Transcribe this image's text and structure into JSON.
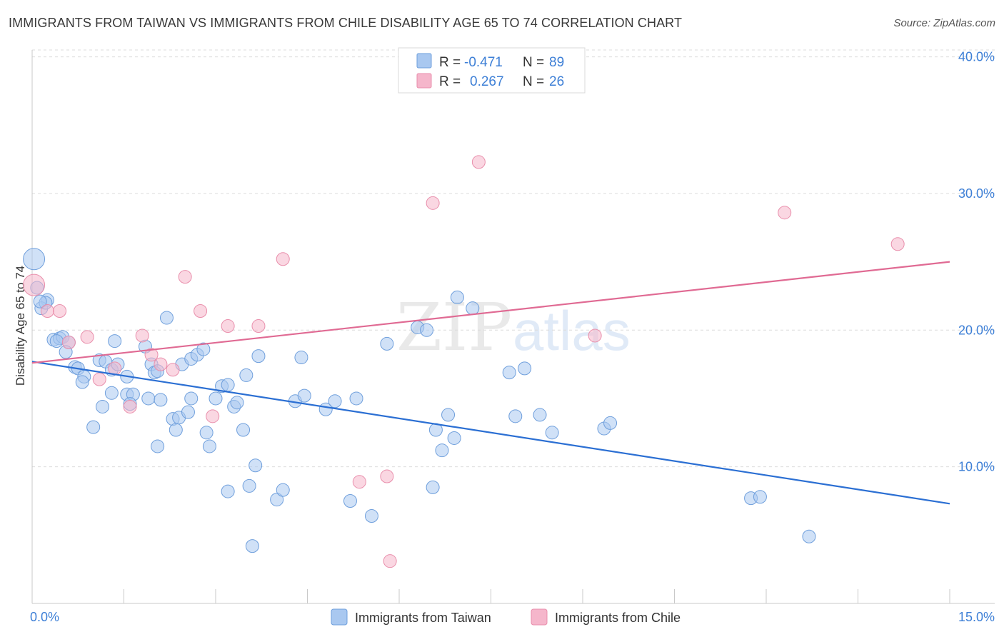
{
  "header": {
    "title": "IMMIGRANTS FROM TAIWAN VS IMMIGRANTS FROM CHILE DISABILITY AGE 65 TO 74 CORRELATION CHART",
    "source": "Source: ZipAtlas.com"
  },
  "watermark": {
    "zip": "ZIP",
    "atlas": "atlas"
  },
  "legend": {
    "rows": [
      {
        "r_label": "R =",
        "r_value": "-0.471",
        "n_label": "N =",
        "n_value": "89",
        "color": "#a9c8f0"
      },
      {
        "r_label": "R =",
        "r_value": "0.267",
        "n_label": "N =",
        "n_value": "26",
        "color": "#f5b6cb"
      }
    ]
  },
  "chart_data": {
    "type": "scatter",
    "title": "IMMIGRANTS FROM TAIWAN VS IMMIGRANTS FROM CHILE DISABILITY AGE 65 TO 74 CORRELATION CHART",
    "xlabel": "",
    "ylabel": "Disability Age 65 to 74",
    "xlim": [
      0,
      15
    ],
    "ylim": [
      0,
      40.5
    ],
    "x_tick_labels": [
      "0.0%",
      "15.0%"
    ],
    "y_ticks": [
      10,
      20,
      30,
      40
    ],
    "y_tick_labels": [
      "10.0%",
      "20.0%",
      "30.0%",
      "40.0%"
    ],
    "grid": true,
    "legend_position": "top-center",
    "series": [
      {
        "name": "Immigrants from Taiwan",
        "color": "#a9c8f0",
        "stroke": "#6f9fdc",
        "trend_color": "#2b6fd3",
        "trend": {
          "x": [
            0,
            15
          ],
          "y": [
            17.7,
            7.3
          ]
        },
        "points": [
          [
            0.03,
            25.2
          ],
          [
            0.08,
            23.1
          ],
          [
            0.25,
            22.2
          ],
          [
            0.15,
            21.6
          ],
          [
            0.22,
            22.0
          ],
          [
            0.35,
            19.3
          ],
          [
            0.45,
            19.4
          ],
          [
            0.5,
            19.5
          ],
          [
            0.4,
            19.2
          ],
          [
            0.6,
            19.1
          ],
          [
            0.55,
            18.4
          ],
          [
            0.7,
            17.3
          ],
          [
            0.75,
            17.2
          ],
          [
            0.85,
            16.6
          ],
          [
            0.82,
            16.2
          ],
          [
            1.1,
            17.8
          ],
          [
            1.2,
            17.7
          ],
          [
            1.3,
            17.1
          ],
          [
            1.4,
            17.5
          ],
          [
            1.55,
            16.6
          ],
          [
            1.35,
            19.2
          ],
          [
            1.85,
            18.8
          ],
          [
            1.95,
            17.5
          ],
          [
            2.0,
            16.9
          ],
          [
            2.05,
            17.0
          ],
          [
            1.3,
            15.4
          ],
          [
            1.55,
            15.3
          ],
          [
            1.65,
            15.3
          ],
          [
            1.6,
            14.6
          ],
          [
            1.15,
            14.4
          ],
          [
            1.0,
            12.9
          ],
          [
            1.9,
            15.0
          ],
          [
            2.1,
            14.9
          ],
          [
            2.2,
            20.9
          ],
          [
            2.3,
            13.5
          ],
          [
            2.4,
            13.6
          ],
          [
            2.35,
            12.7
          ],
          [
            2.05,
            11.5
          ],
          [
            2.45,
            17.5
          ],
          [
            2.6,
            17.9
          ],
          [
            2.6,
            15.0
          ],
          [
            2.55,
            14.0
          ],
          [
            2.7,
            18.2
          ],
          [
            2.8,
            18.6
          ],
          [
            2.85,
            12.5
          ],
          [
            2.9,
            11.5
          ],
          [
            3.0,
            15.0
          ],
          [
            3.1,
            15.9
          ],
          [
            3.2,
            16.0
          ],
          [
            3.3,
            14.4
          ],
          [
            3.35,
            14.7
          ],
          [
            3.2,
            8.2
          ],
          [
            3.45,
            12.7
          ],
          [
            3.5,
            16.7
          ],
          [
            3.55,
            8.6
          ],
          [
            3.65,
            10.1
          ],
          [
            3.7,
            18.1
          ],
          [
            3.6,
            4.2
          ],
          [
            4.0,
            7.6
          ],
          [
            4.1,
            8.3
          ],
          [
            4.3,
            14.8
          ],
          [
            4.4,
            18.0
          ],
          [
            4.45,
            15.2
          ],
          [
            4.8,
            14.2
          ],
          [
            4.95,
            14.8
          ],
          [
            5.2,
            7.5
          ],
          [
            5.3,
            15.0
          ],
          [
            5.55,
            6.4
          ],
          [
            5.8,
            19.0
          ],
          [
            6.3,
            20.2
          ],
          [
            6.45,
            20.0
          ],
          [
            6.55,
            8.5
          ],
          [
            6.6,
            12.7
          ],
          [
            6.7,
            11.2
          ],
          [
            6.8,
            13.8
          ],
          [
            6.9,
            12.1
          ],
          [
            6.95,
            22.4
          ],
          [
            7.2,
            21.6
          ],
          [
            7.8,
            16.9
          ],
          [
            7.9,
            13.7
          ],
          [
            8.05,
            17.2
          ],
          [
            8.3,
            13.8
          ],
          [
            8.5,
            12.5
          ],
          [
            9.35,
            12.8
          ],
          [
            9.45,
            13.2
          ],
          [
            11.75,
            7.7
          ],
          [
            11.9,
            7.8
          ],
          [
            12.7,
            4.9
          ],
          [
            0.13,
            22.1
          ]
        ]
      },
      {
        "name": "Immigrants from Chile",
        "color": "#f5b6cb",
        "stroke": "#e98fac",
        "trend_color": "#e06a93",
        "trend": {
          "x": [
            0,
            15
          ],
          "y": [
            17.6,
            25.0
          ]
        },
        "points": [
          [
            0.03,
            23.3
          ],
          [
            0.25,
            21.4
          ],
          [
            0.45,
            21.4
          ],
          [
            0.6,
            19.1
          ],
          [
            0.9,
            19.5
          ],
          [
            1.1,
            16.4
          ],
          [
            1.35,
            17.2
          ],
          [
            1.6,
            14.4
          ],
          [
            1.8,
            19.6
          ],
          [
            1.95,
            18.2
          ],
          [
            2.1,
            17.5
          ],
          [
            2.3,
            17.1
          ],
          [
            2.5,
            23.9
          ],
          [
            2.75,
            21.4
          ],
          [
            2.95,
            13.7
          ],
          [
            3.2,
            20.3
          ],
          [
            3.7,
            20.3
          ],
          [
            4.1,
            25.2
          ],
          [
            5.35,
            8.9
          ],
          [
            5.85,
            3.1
          ],
          [
            5.8,
            9.3
          ],
          [
            6.55,
            29.3
          ],
          [
            7.3,
            32.3
          ],
          [
            9.2,
            19.6
          ],
          [
            12.3,
            28.6
          ],
          [
            14.15,
            26.3
          ]
        ]
      }
    ]
  }
}
